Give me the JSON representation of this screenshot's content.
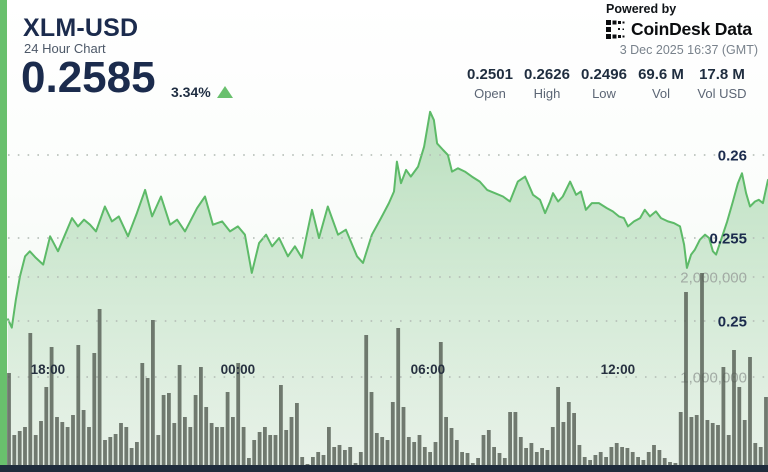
{
  "header": {
    "symbol": "XLM-USD",
    "subtitle": "24 Hour Chart",
    "price": "0.2585",
    "change_pct": "3.34%",
    "change_direction": "up",
    "powered_by": "Powered by",
    "brand": "CoinDesk Data",
    "timestamp": "3 Dec 2025 16:37 (GMT)",
    "stats": [
      {
        "value": "0.2501",
        "label": "Open"
      },
      {
        "value": "0.2626",
        "label": "High"
      },
      {
        "value": "0.2496",
        "label": "Low"
      },
      {
        "value": "69.6 M",
        "label": "Vol"
      },
      {
        "value": "17.8 M",
        "label": "Vol USD"
      }
    ]
  },
  "colors": {
    "accent": "#69c06d",
    "line": "#5dba68",
    "fill": "#8fcb96",
    "navy": "#1b2b4d",
    "bar": "#525b51",
    "strip": "#1f2c3c",
    "grid": "#b4bdb6",
    "volgray": "#a2aba4"
  },
  "chart_data": {
    "type": "area+bar",
    "title": "XLM-USD 24 Hour Chart",
    "legend_position": "none",
    "grid": "dotted-horizontal",
    "summary": {
      "open": 0.2501,
      "high": 0.2626,
      "low": 0.2496,
      "vol": "69.6 M",
      "vol_usd": "17.8 M",
      "last": 0.2585,
      "change_pct": 3.34
    },
    "x_axis": {
      "unit": "hours-from-chart-start",
      "range": [
        0,
        24
      ],
      "ticks": [
        {
          "hour": 1.26,
          "label": "18:00"
        },
        {
          "hour": 7.26,
          "label": "00:00"
        },
        {
          "hour": 13.26,
          "label": "06:00"
        },
        {
          "hour": 19.26,
          "label": "12:00"
        }
      ]
    },
    "price_axis": {
      "range": [
        0.2475,
        0.263
      ],
      "ticks": [
        {
          "value": 0.25,
          "label": "0.25"
        },
        {
          "value": 0.255,
          "label": "0.255"
        },
        {
          "value": 0.26,
          "label": "0.26"
        }
      ]
    },
    "volume_axis": {
      "range": [
        0,
        2200000
      ],
      "ticks": [
        {
          "value": 1,
          "label": "1,000,000"
        },
        {
          "value": 2,
          "label": "2,000,000"
        }
      ]
    },
    "price_series": {
      "name": "XLM-USD price",
      "points": [
        [
          0.0,
          0.2501
        ],
        [
          0.12,
          0.2496
        ],
        [
          0.25,
          0.2513
        ],
        [
          0.38,
          0.2527
        ],
        [
          0.54,
          0.2539
        ],
        [
          0.69,
          0.2542
        ],
        [
          0.88,
          0.2538
        ],
        [
          1.11,
          0.2534
        ],
        [
          1.33,
          0.2551
        ],
        [
          1.58,
          0.2542
        ],
        [
          1.8,
          0.2552
        ],
        [
          2.02,
          0.2562
        ],
        [
          2.21,
          0.2557
        ],
        [
          2.4,
          0.2561
        ],
        [
          2.59,
          0.2558
        ],
        [
          2.78,
          0.2554
        ],
        [
          3.06,
          0.2569
        ],
        [
          3.28,
          0.256
        ],
        [
          3.5,
          0.2563
        ],
        [
          3.79,
          0.2551
        ],
        [
          4.07,
          0.2565
        ],
        [
          4.33,
          0.2579
        ],
        [
          4.55,
          0.2563
        ],
        [
          4.83,
          0.2575
        ],
        [
          5.12,
          0.2558
        ],
        [
          5.34,
          0.2561
        ],
        [
          5.59,
          0.2554
        ],
        [
          5.97,
          0.2568
        ],
        [
          6.22,
          0.2575
        ],
        [
          6.47,
          0.2558
        ],
        [
          6.76,
          0.256
        ],
        [
          7.01,
          0.2554
        ],
        [
          7.26,
          0.2557
        ],
        [
          7.48,
          0.2552
        ],
        [
          7.7,
          0.2529
        ],
        [
          7.93,
          0.2547
        ],
        [
          8.15,
          0.2552
        ],
        [
          8.34,
          0.2545
        ],
        [
          8.56,
          0.255
        ],
        [
          8.84,
          0.2539
        ],
        [
          9.06,
          0.2545
        ],
        [
          9.28,
          0.2538
        ],
        [
          9.6,
          0.2567
        ],
        [
          9.82,
          0.255
        ],
        [
          10.1,
          0.2569
        ],
        [
          10.42,
          0.2552
        ],
        [
          10.67,
          0.2555
        ],
        [
          11.02,
          0.2539
        ],
        [
          11.21,
          0.2535
        ],
        [
          11.49,
          0.2552
        ],
        [
          11.78,
          0.2562
        ],
        [
          12.03,
          0.2571
        ],
        [
          12.19,
          0.2578
        ],
        [
          12.28,
          0.2596
        ],
        [
          12.41,
          0.2583
        ],
        [
          12.57,
          0.2591
        ],
        [
          12.72,
          0.2587
        ],
        [
          12.95,
          0.2593
        ],
        [
          13.14,
          0.2605
        ],
        [
          13.33,
          0.2626
        ],
        [
          13.45,
          0.2621
        ],
        [
          13.55,
          0.2607
        ],
        [
          13.74,
          0.2603
        ],
        [
          13.89,
          0.26
        ],
        [
          14.02,
          0.259
        ],
        [
          14.21,
          0.2592
        ],
        [
          14.43,
          0.259
        ],
        [
          14.65,
          0.2587
        ],
        [
          14.9,
          0.2584
        ],
        [
          15.13,
          0.2579
        ],
        [
          15.38,
          0.2577
        ],
        [
          15.63,
          0.2575
        ],
        [
          15.85,
          0.2572
        ],
        [
          16.1,
          0.2584
        ],
        [
          16.33,
          0.2587
        ],
        [
          16.58,
          0.2576
        ],
        [
          16.8,
          0.2573
        ],
        [
          16.96,
          0.2565
        ],
        [
          17.12,
          0.2572
        ],
        [
          17.21,
          0.2577
        ],
        [
          17.37,
          0.2572
        ],
        [
          17.52,
          0.2575
        ],
        [
          17.75,
          0.2584
        ],
        [
          17.94,
          0.2576
        ],
        [
          18.09,
          0.2578
        ],
        [
          18.25,
          0.2567
        ],
        [
          18.44,
          0.2571
        ],
        [
          18.66,
          0.2571
        ],
        [
          18.91,
          0.2568
        ],
        [
          19.1,
          0.2566
        ],
        [
          19.29,
          0.2563
        ],
        [
          19.45,
          0.2562
        ],
        [
          19.58,
          0.2557
        ],
        [
          19.77,
          0.256
        ],
        [
          19.96,
          0.2562
        ],
        [
          20.11,
          0.2567
        ],
        [
          20.27,
          0.2563
        ],
        [
          20.46,
          0.2566
        ],
        [
          20.62,
          0.2562
        ],
        [
          20.84,
          0.256
        ],
        [
          21.03,
          0.2559
        ],
        [
          21.22,
          0.2557
        ],
        [
          21.35,
          0.2546
        ],
        [
          21.44,
          0.2532
        ],
        [
          21.57,
          0.254
        ],
        [
          21.69,
          0.2543
        ],
        [
          21.85,
          0.2549
        ],
        [
          22.01,
          0.2552
        ],
        [
          22.14,
          0.255
        ],
        [
          22.26,
          0.2542
        ],
        [
          22.36,
          0.254
        ],
        [
          22.52,
          0.2549
        ],
        [
          22.71,
          0.256
        ],
        [
          22.89,
          0.2572
        ],
        [
          23.05,
          0.2583
        ],
        [
          23.18,
          0.2589
        ],
        [
          23.31,
          0.2577
        ],
        [
          23.43,
          0.2569
        ],
        [
          23.59,
          0.2572
        ],
        [
          23.71,
          0.2573
        ],
        [
          23.84,
          0.2571
        ],
        [
          24.0,
          0.2585
        ]
      ]
    },
    "volume_series": {
      "name": "Volume (millions)",
      "values_m": [
        1.04,
        0.42,
        0.46,
        0.5,
        1.44,
        0.42,
        0.56,
        0.9,
        1.3,
        0.6,
        0.55,
        0.5,
        0.62,
        1.32,
        0.67,
        0.5,
        1.24,
        1.68,
        0.37,
        0.4,
        0.43,
        0.54,
        0.5,
        0.29,
        0.35,
        1.14,
        0.99,
        1.57,
        0.42,
        0.82,
        0.84,
        0.54,
        1.12,
        0.6,
        0.5,
        0.82,
        1.1,
        0.7,
        0.54,
        0.5,
        0.5,
        0.85,
        0.6,
        1.14,
        0.5,
        0.19,
        0.37,
        0.45,
        0.5,
        0.42,
        0.42,
        0.92,
        0.47,
        0.6,
        0.74,
        0.2,
        0.09,
        0.2,
        0.25,
        0.22,
        0.5,
        0.3,
        0.32,
        0.27,
        0.3,
        0.14,
        0.25,
        1.42,
        0.85,
        0.44,
        0.4,
        0.37,
        0.75,
        1.49,
        0.7,
        0.4,
        0.35,
        0.42,
        0.3,
        0.25,
        0.35,
        1.35,
        0.6,
        0.49,
        0.37,
        0.25,
        0.24,
        0.14,
        0.19,
        0.42,
        0.47,
        0.3,
        0.24,
        0.19,
        0.65,
        0.65,
        0.4,
        0.29,
        0.34,
        0.25,
        0.29,
        0.27,
        0.5,
        0.9,
        0.55,
        0.75,
        0.64,
        0.32,
        0.2,
        0.17,
        0.22,
        0.25,
        0.2,
        0.3,
        0.34,
        0.3,
        0.29,
        0.25,
        0.2,
        0.17,
        0.25,
        0.32,
        0.27,
        0.19,
        0.15,
        0.14,
        0.65,
        1.85,
        0.6,
        0.62,
        2.04,
        0.57,
        0.54,
        0.52,
        1.1,
        0.42,
        1.27,
        0.9,
        0.57,
        1.2,
        0.34,
        0.3,
        0.8
      ]
    }
  }
}
